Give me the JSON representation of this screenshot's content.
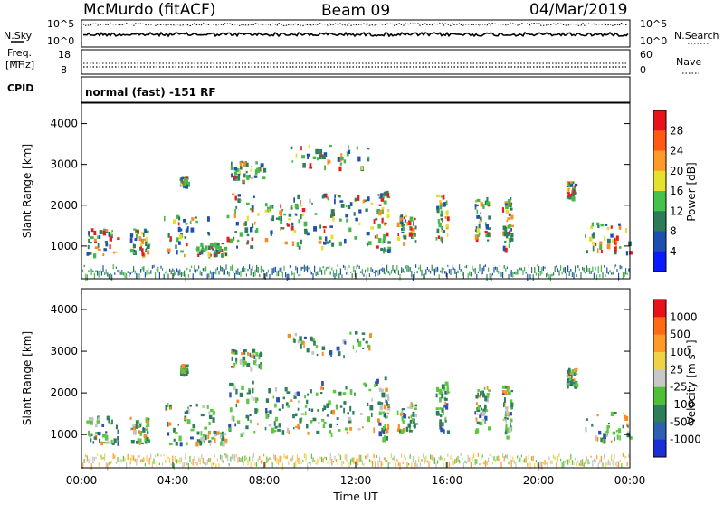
{
  "header": {
    "station": "McMurdo (fitACF)",
    "beam": "Beam 09",
    "date": "04/Mar/2019"
  },
  "noise_panel": {
    "left_label": "N.Sky",
    "right_label": "N.Search",
    "tick_top": "10^5",
    "tick_bottom": "10^0"
  },
  "freq_panel": {
    "left_label_1": "Freq.",
    "left_label_2": "[MHz]",
    "left_tick_top": "18",
    "left_tick_bottom": "8",
    "right_label": "Nave",
    "right_tick_top": "60",
    "right_tick_bottom": "0"
  },
  "cpid_panel": {
    "label": "CPID",
    "text": "normal (fast) -151 RF"
  },
  "chart_data": [
    {
      "type": "heatmap",
      "title": "",
      "xlabel": "",
      "ylabel": "Slant Range [km]",
      "x_ticks": [
        "00:00",
        "04:00",
        "08:00",
        "12:00",
        "16:00",
        "20:00",
        "00:00"
      ],
      "xlim": [
        0,
        24
      ],
      "y_ticks": [
        1000,
        2000,
        3000,
        4000
      ],
      "ylim": [
        200,
        4500
      ],
      "colorbar": {
        "label": "Power [dB]",
        "ticks": [
          "4",
          "8",
          "12",
          "16",
          "20",
          "24",
          "28"
        ],
        "colors": [
          "#0b1bff",
          "#1e4fb0",
          "#2c7c58",
          "#44c24a",
          "#e7e02c",
          "#ff9a2a",
          "#ff5a14",
          "#e8121b"
        ]
      },
      "colors": {
        "weak": "#1f4fb4",
        "mid": "#2e7e5a",
        "green": "#45b84a",
        "yellow": "#e6dc36",
        "orange": "#ff8a24",
        "red": "#e81c1c"
      }
    },
    {
      "type": "heatmap",
      "title": "",
      "xlabel": "Time UT",
      "ylabel": "Slant Range [km]",
      "x_ticks": [
        "00:00",
        "04:00",
        "08:00",
        "12:00",
        "16:00",
        "20:00",
        "00:00"
      ],
      "xlim": [
        0,
        24
      ],
      "y_ticks": [
        1000,
        2000,
        3000,
        4000
      ],
      "ylim": [
        200,
        4500
      ],
      "colorbar": {
        "label": "Velocity [m s⁻¹]",
        "ticks": [
          "1000",
          "500",
          "100",
          "25",
          "-25",
          "-100",
          "-500",
          "-1000"
        ],
        "colors": [
          "#1b2fd6",
          "#2d5fb3",
          "#2e7e5a",
          "#4fbf3a",
          "#c8c8c8",
          "#f0d24a",
          "#ff9a2a",
          "#ff6a14",
          "#e8121b"
        ]
      },
      "colors": {
        "teal": "#2e7e5a",
        "green": "#5cc840",
        "gray": "#c4c4c4",
        "orange": "#ff8a1e",
        "blue": "#2d4fb0",
        "red": "#e81c1c"
      }
    }
  ]
}
